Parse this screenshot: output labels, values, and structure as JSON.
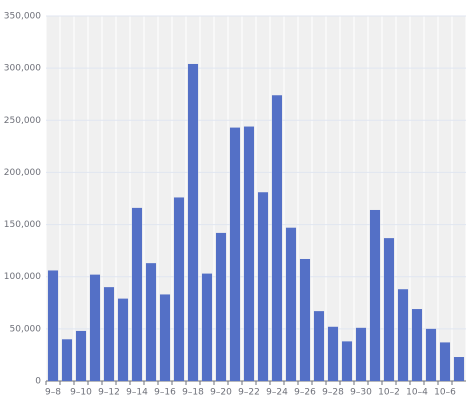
{
  "chart_data": {
    "type": "bar",
    "categories": [
      "9–8",
      null,
      "9–10",
      null,
      "9–12",
      null,
      "9–14",
      null,
      "9–16",
      null,
      "9–18",
      null,
      "9–20",
      null,
      "9–22",
      null,
      "9–24",
      null,
      "9–26",
      null,
      "9–28",
      null,
      "9–30",
      null,
      "10–2",
      null,
      "10–4",
      null,
      "10–6",
      null
    ],
    "values": [
      106000,
      40000,
      48000,
      102000,
      90000,
      79000,
      166000,
      113000,
      83000,
      176000,
      304000,
      103000,
      142000,
      243000,
      244000,
      181000,
      274000,
      147000,
      117000,
      67000,
      52000,
      38000,
      51000,
      164000,
      137000,
      88000,
      69000,
      50000,
      37000,
      23000
    ],
    "color": "#5470c6",
    "ylim": [
      0,
      350000
    ],
    "yticks": [
      0,
      {
        "value": 50000,
        "label": "50,000"
      },
      {
        "value": 100000,
        "label": "100,000"
      },
      {
        "value": 150000,
        "label": "150,000"
      },
      {
        "value": 200000,
        "label": "200,000"
      },
      {
        "value": 250000,
        "label": "250,000"
      },
      {
        "value": 300000,
        "label": "300,000"
      },
      {
        "value": 350000,
        "label": "350,000"
      }
    ],
    "grid": true
  }
}
